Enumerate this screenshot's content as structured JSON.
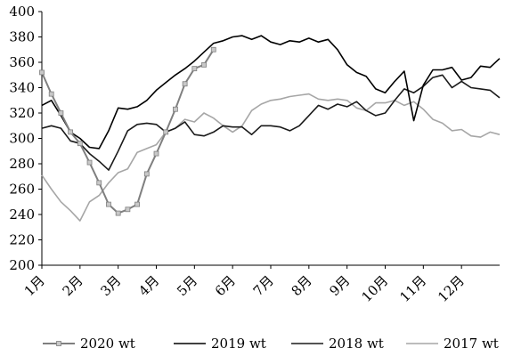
{
  "chart_data": {
    "type": "line",
    "title": "",
    "xlabel": "",
    "ylabel": "",
    "ylim": [
      200,
      400
    ],
    "yticks": [
      200,
      220,
      240,
      260,
      280,
      300,
      320,
      340,
      360,
      380,
      400
    ],
    "xlim": [
      0,
      12
    ],
    "x_tick_labels": [
      "1月",
      "2月",
      "3月",
      "4月",
      "5月",
      "6月",
      "7月",
      "8月",
      "9月",
      "10月",
      "11月",
      "12月"
    ],
    "grid": false,
    "legend_position": "bottom",
    "series": [
      {
        "name": "2020 wt",
        "color": "#7f7f7f",
        "marker": "square",
        "x": [
          0.0,
          0.25,
          0.5,
          0.75,
          1.0,
          1.25,
          1.5,
          1.75,
          2.0,
          2.25,
          2.5,
          2.75,
          3.0,
          3.25,
          3.5,
          3.75,
          4.0,
          4.25,
          4.5
        ],
        "y": [
          352,
          335,
          320,
          305,
          296,
          281,
          265,
          248,
          241,
          244,
          248,
          272,
          288,
          305,
          323,
          343,
          355,
          358,
          370
        ]
      },
      {
        "name": "2019 wt",
        "color": "#000000",
        "x": [
          0.0,
          0.25,
          0.5,
          0.75,
          1.0,
          1.25,
          1.5,
          1.75,
          2.0,
          2.25,
          2.5,
          2.75,
          3.0,
          3.25,
          3.5,
          3.75,
          4.0,
          4.25,
          4.5,
          4.75,
          5.0,
          5.25,
          5.5,
          5.75,
          6.0,
          6.25,
          6.5,
          6.75,
          7.0,
          7.25,
          7.5,
          7.75,
          8.0,
          8.25,
          8.5,
          8.75,
          9.0,
          9.25,
          9.5,
          9.75,
          10.0,
          10.25,
          10.5,
          10.75,
          11.0,
          11.25,
          11.5,
          11.75,
          12.0
        ],
        "y": [
          326,
          330,
          318,
          305,
          300,
          293,
          292,
          306,
          324,
          323,
          325,
          330,
          338,
          344,
          350,
          355,
          361,
          368,
          375,
          377,
          380,
          381,
          378,
          381,
          376,
          374,
          377,
          376,
          379,
          376,
          378,
          370,
          358,
          352,
          349,
          339,
          336,
          345,
          353,
          314,
          342,
          354,
          354,
          356,
          346,
          348,
          357,
          356,
          363
        ]
      },
      {
        "name": "2018 wt",
        "color": "#1a1a1a",
        "x": [
          0.0,
          0.25,
          0.5,
          0.75,
          1.0,
          1.25,
          1.5,
          1.75,
          2.0,
          2.25,
          2.5,
          2.75,
          3.0,
          3.25,
          3.5,
          3.75,
          4.0,
          4.25,
          4.5,
          4.75,
          5.0,
          5.25,
          5.5,
          5.75,
          6.0,
          6.25,
          6.5,
          6.75,
          7.0,
          7.25,
          7.5,
          7.75,
          8.0,
          8.25,
          8.5,
          8.75,
          9.0,
          9.25,
          9.5,
          9.75,
          10.0,
          10.25,
          10.5,
          10.75,
          11.0,
          11.25,
          11.5,
          11.75,
          12.0
        ],
        "y": [
          308,
          310,
          308,
          298,
          296,
          288,
          282,
          275,
          290,
          306,
          311,
          312,
          311,
          305,
          308,
          313,
          303,
          302,
          305,
          310,
          309,
          309,
          303,
          310,
          310,
          309,
          306,
          310,
          318,
          326,
          323,
          327,
          325,
          329,
          322,
          318,
          320,
          330,
          339,
          336,
          341,
          348,
          350,
          340,
          345,
          340,
          339,
          338,
          332
        ]
      },
      {
        "name": "2017 wt",
        "color": "#a6a6a6",
        "x": [
          0.0,
          0.25,
          0.5,
          0.75,
          1.0,
          1.25,
          1.5,
          1.75,
          2.0,
          2.25,
          2.5,
          2.75,
          3.0,
          3.25,
          3.5,
          3.75,
          4.0,
          4.25,
          4.5,
          4.75,
          5.0,
          5.25,
          5.5,
          5.75,
          6.0,
          6.25,
          6.5,
          6.75,
          7.0,
          7.25,
          7.5,
          7.75,
          8.0,
          8.25,
          8.5,
          8.75,
          9.0,
          9.25,
          9.5,
          9.75,
          10.0,
          10.25,
          10.5,
          10.75,
          11.0,
          11.25,
          11.5,
          11.75,
          12.0
        ],
        "y": [
          271,
          260,
          250,
          243,
          235,
          250,
          255,
          265,
          273,
          276,
          289,
          292,
          295,
          305,
          308,
          315,
          313,
          320,
          316,
          310,
          305,
          310,
          322,
          327,
          330,
          331,
          333,
          334,
          335,
          331,
          330,
          331,
          330,
          324,
          322,
          328,
          328,
          330,
          326,
          329,
          323,
          315,
          312,
          306,
          307,
          302,
          301,
          305,
          303
        ]
      }
    ]
  }
}
